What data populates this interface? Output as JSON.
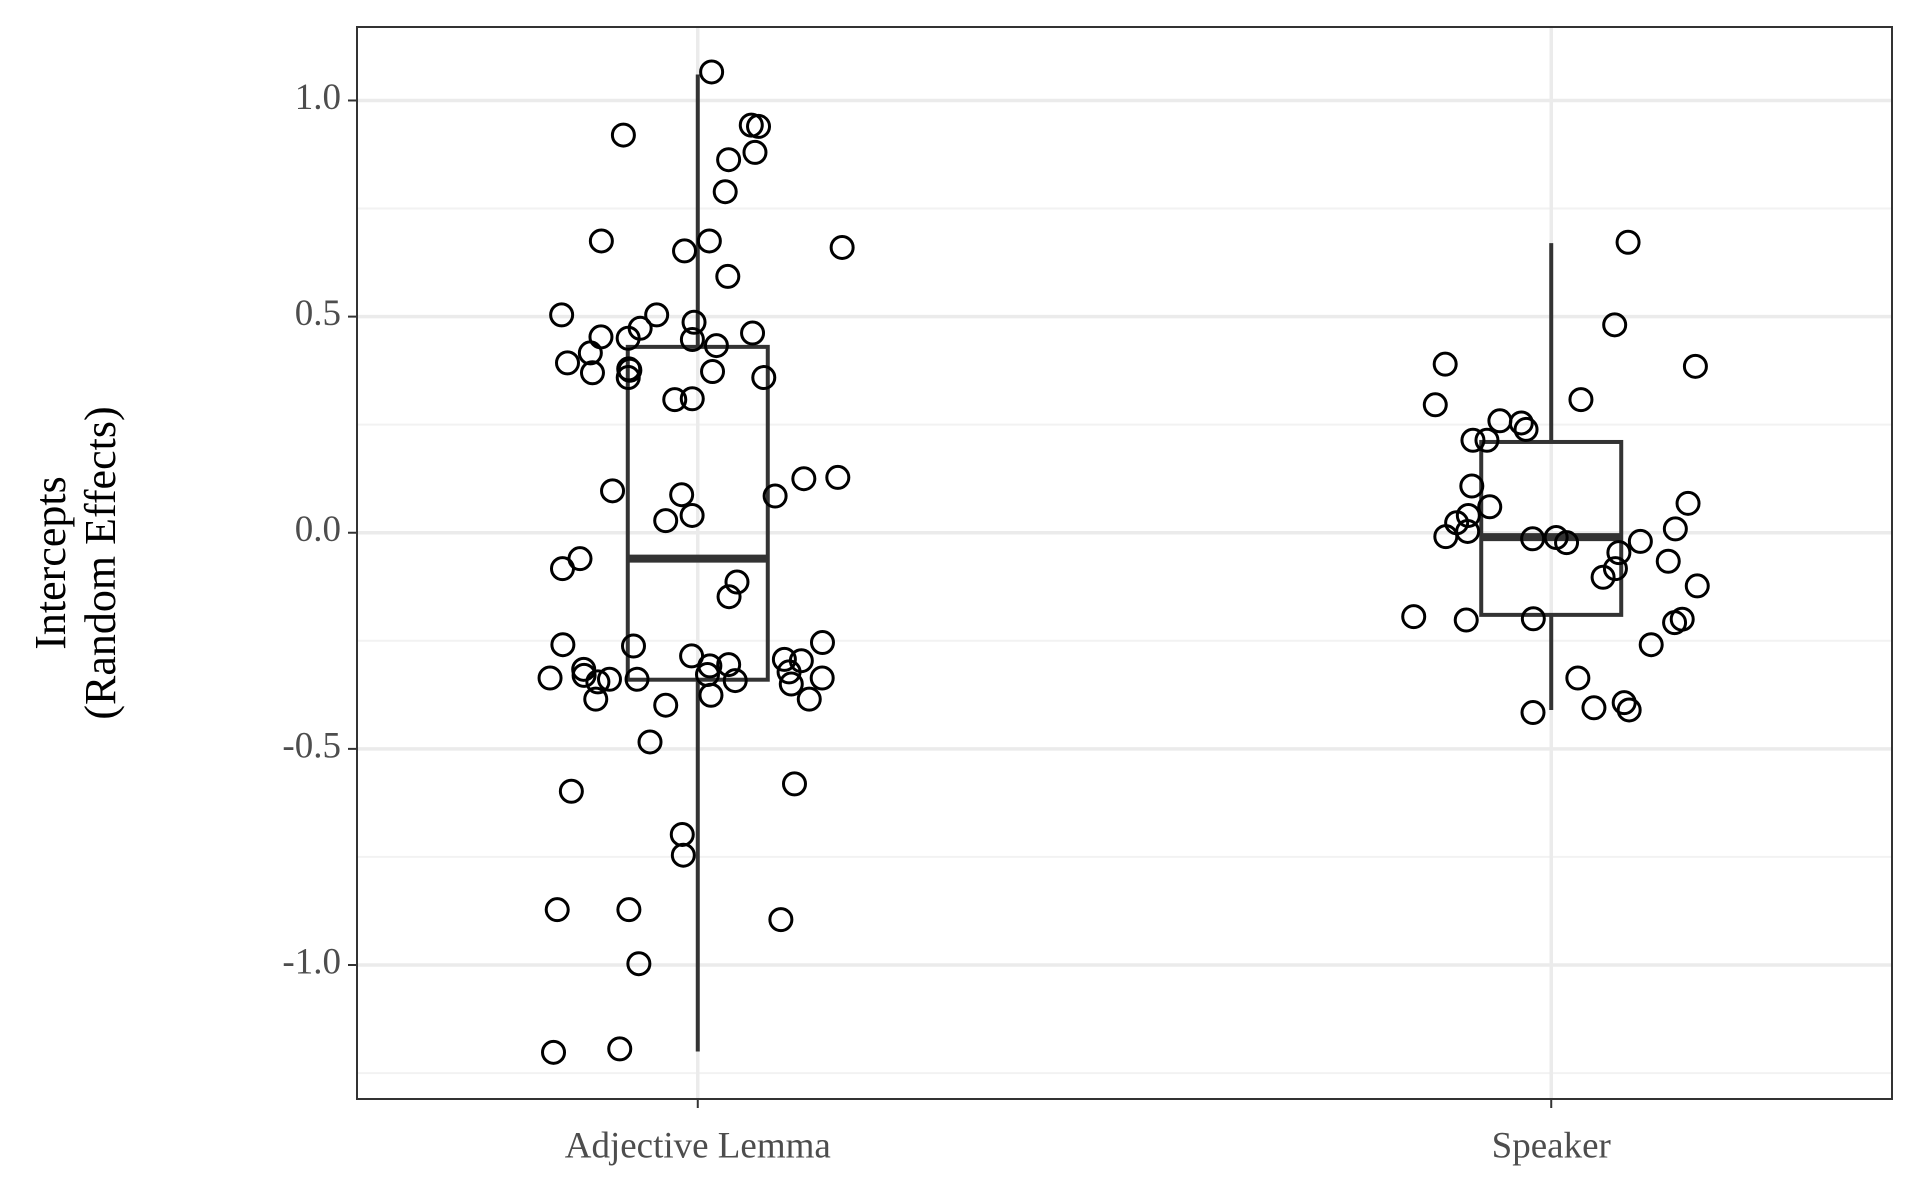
{
  "chart_data": {
    "type": "boxplot",
    "y_label": [
      "Intercepts",
      "(Random Effects)"
    ],
    "categories": [
      "Adjective Lemma",
      "Speaker"
    ],
    "boxes": [
      {
        "low": -1.2,
        "q1": -0.34,
        "median": -0.06,
        "q3": 0.43,
        "high": 1.06
      },
      {
        "low": -0.41,
        "q1": -0.19,
        "median": -0.01,
        "q3": 0.21,
        "high": 0.67
      }
    ],
    "points": [
      [
        1.066,
        0.92,
        0.943,
        0.94,
        0.88,
        0.863,
        0.789,
        0.675,
        0.675,
        0.652,
        0.66,
        0.593,
        0.504,
        0.504,
        0.487,
        0.473,
        0.462,
        0.453,
        0.45,
        0.447,
        0.433,
        0.416,
        0.393,
        0.379,
        0.376,
        0.37,
        0.359,
        0.373,
        0.359,
        0.308,
        0.31,
        0.128,
        0.125,
        0.097,
        0.085,
        0.088,
        0.04,
        0.028,
        -0.06,
        -0.083,
        -0.114,
        -0.148,
        -0.254,
        -0.262,
        -0.259,
        -0.293,
        -0.285,
        -0.296,
        -0.308,
        -0.305,
        -0.316,
        -0.322,
        -0.328,
        -0.33,
        -0.336,
        -0.339,
        -0.339,
        -0.342,
        -0.336,
        -0.345,
        -0.35,
        -0.376,
        -0.385,
        -0.385,
        -0.399,
        -0.484,
        -0.581,
        -0.598,
        -0.698,
        -0.746,
        -0.872,
        -0.872,
        -0.895,
        -0.997,
        -1.194,
        -1.202
      ],
      [
        0.672,
        0.481,
        0.39,
        0.385,
        0.308,
        0.296,
        0.254,
        0.259,
        0.239,
        0.214,
        0.214,
        0.108,
        0.068,
        0.06,
        0.04,
        0.023,
        0.009,
        0.003,
        -0.009,
        -0.011,
        -0.014,
        -0.02,
        -0.023,
        -0.046,
        -0.066,
        -0.083,
        -0.103,
        -0.123,
        -0.194,
        -0.199,
        -0.202,
        -0.208,
        -0.2,
        -0.259,
        -0.336,
        -0.393,
        -0.405,
        -0.416,
        -0.41
      ]
    ],
    "ylim": [
      -1.31,
      1.17
    ],
    "yticks": [
      {
        "value": -1,
        "label": "-1.0"
      },
      {
        "value": -0.5,
        "label": "-0.5"
      },
      {
        "value": 0,
        "label": "0.0"
      },
      {
        "value": 0.5,
        "label": "0.5"
      },
      {
        "value": 1,
        "label": "1.0"
      }
    ],
    "grid": true
  }
}
